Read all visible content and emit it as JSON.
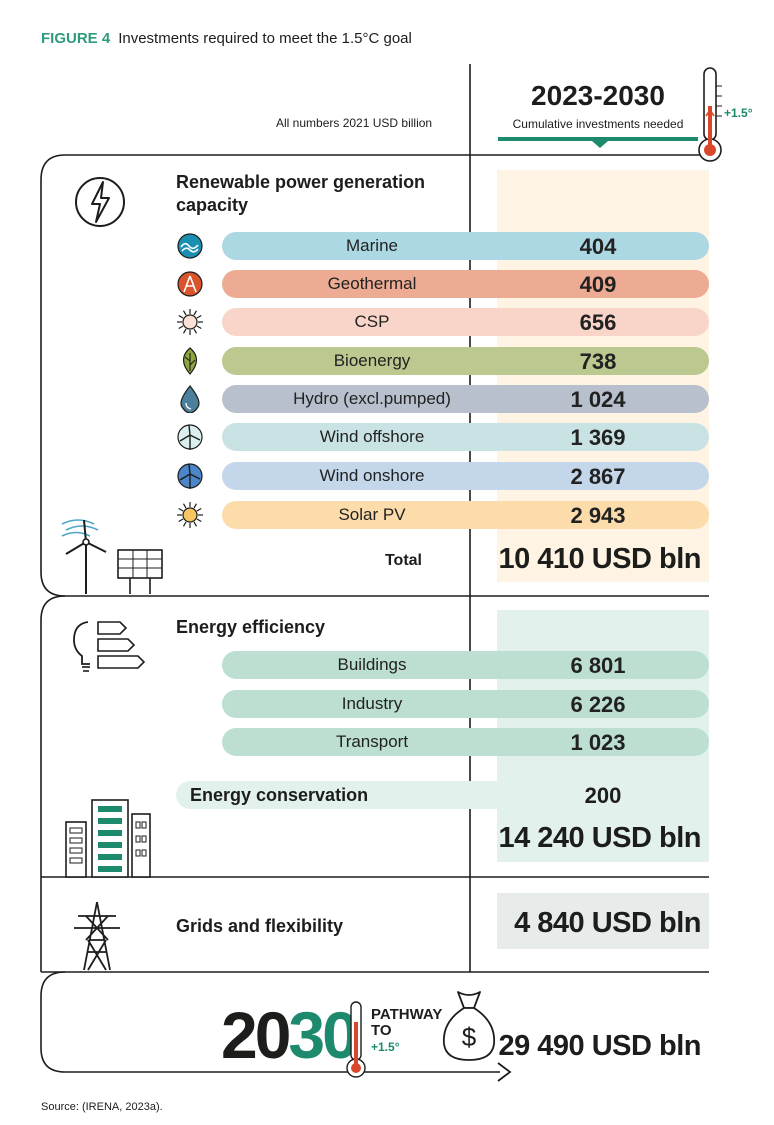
{
  "figure": {
    "label": "FIGURE 4",
    "title": "Investments required to meet the 1.5°C goal",
    "units_note": "All numbers 2021 USD billion",
    "period": "2023-2030",
    "cumulative_label": "Cumulative investments needed",
    "thermo_label": "+1.5°",
    "source": "Source: (IRENA, 2023a)."
  },
  "chart_data": {
    "type": "bar",
    "title": "Investments required to meet the 1.5°C goal",
    "units": "2021 USD billion",
    "sections": [
      {
        "title": "Renewable power generation capacity",
        "categories": [
          "Marine",
          "Geothermal",
          "CSP",
          "Bioenergy",
          "Hydro (excl.pumped)",
          "Wind offshore",
          "Wind onshore",
          "Solar PV"
        ],
        "values": [
          404,
          409,
          656,
          738,
          1024,
          1369,
          2867,
          2943
        ],
        "value_labels": [
          "404",
          "409",
          "656",
          "738",
          "1 024",
          "1 369",
          "2 867",
          "2 943"
        ],
        "colors": [
          "#acd8e4",
          "#ecab92",
          "#f9d5c9",
          "#bbc88f",
          "#b7c0cc",
          "#c9e3e5",
          "#c3d6ea",
          "#fbdcaa"
        ],
        "total_label": "Total",
        "total": "10 410 USD bln"
      },
      {
        "title": "Energy efficiency",
        "categories": [
          "Buildings",
          "Industry",
          "Transport"
        ],
        "values": [
          6801,
          6226,
          1023
        ],
        "value_labels": [
          "6 801",
          "6 226",
          "1 023"
        ],
        "colors": [
          "#bcdfd1",
          "#bcdfd1",
          "#bcdfd1"
        ],
        "conservation_label": "Energy conservation",
        "conservation_value": "200",
        "total": "14 240 USD bln"
      },
      {
        "title": "Grids and flexibility",
        "total": "4 840 USD bln"
      }
    ],
    "pathway": {
      "year_part1": "20",
      "year_part2": "30",
      "line1": "PATHWAY",
      "line2": "TO",
      "line3": "+1.5°",
      "total": "29 490 USD bln"
    },
    "accent": "#1d8a6d"
  }
}
